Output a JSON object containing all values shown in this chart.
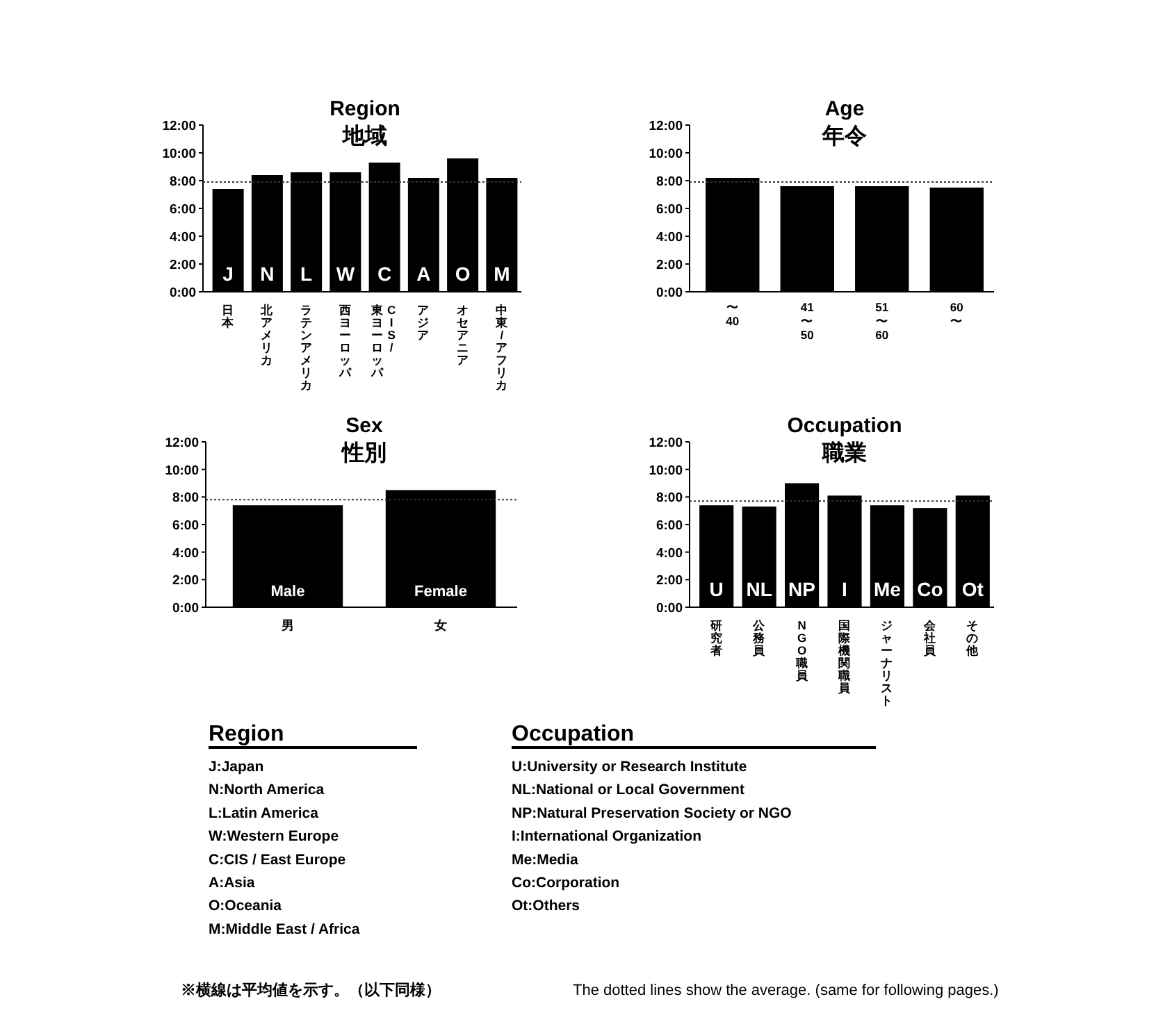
{
  "chart_data": [
    {
      "type": "bar",
      "title": "Region",
      "subtitle": "地域",
      "categories": [
        "日本",
        "北アメリカ",
        "ラテンアメリカ",
        "西ヨーロッパ",
        "CIS/東ヨーロッパ",
        "アジア",
        "オセアニア",
        "中東/アフリカ"
      ],
      "values": [
        7.4,
        8.4,
        8.6,
        8.6,
        9.3,
        8.2,
        9.6,
        8.2
      ],
      "color": "#000000",
      "ylim": [
        0,
        12
      ],
      "yticks": [
        {
          "value": 0,
          "label": "0:00"
        },
        {
          "value": 2,
          "label": "2:00"
        },
        {
          "value": 4,
          "label": "4:00"
        },
        {
          "value": 6,
          "label": "6:00"
        },
        {
          "value": 8,
          "label": "8:00"
        },
        {
          "value": 10,
          "label": "10:00"
        },
        {
          "value": 12,
          "label": "12:00"
        }
      ],
      "ref_lines": [
        {
          "axis": "y",
          "value": 7.9,
          "color": "#333333",
          "line_style": "dotted"
        }
      ],
      "annotations": [
        "J",
        "N",
        "L",
        "W",
        "C",
        "A",
        "O",
        "M"
      ]
    },
    {
      "type": "bar",
      "title": "Age",
      "subtitle": "年令",
      "categories": [
        "〜40",
        "41〜50",
        "51〜60",
        "60〜"
      ],
      "values": [
        8.2,
        7.6,
        7.6,
        7.5
      ],
      "color": "#000000",
      "ylim": [
        0,
        12
      ],
      "yticks": [
        {
          "value": 0,
          "label": "0:00"
        },
        {
          "value": 2,
          "label": "2:00"
        },
        {
          "value": 4,
          "label": "4:00"
        },
        {
          "value": 6,
          "label": "6:00"
        },
        {
          "value": 8,
          "label": "8:00"
        },
        {
          "value": 10,
          "label": "10:00"
        },
        {
          "value": 12,
          "label": "12:00"
        }
      ],
      "ref_lines": [
        {
          "axis": "y",
          "value": 7.9,
          "color": "#333333",
          "line_style": "dotted"
        }
      ]
    },
    {
      "type": "bar",
      "title": "Sex",
      "subtitle": "性別",
      "categories": [
        "男",
        "女"
      ],
      "values": [
        7.4,
        8.5
      ],
      "color": "#000000",
      "ylim": [
        0,
        12
      ],
      "yticks": [
        {
          "value": 0,
          "label": "0:00"
        },
        {
          "value": 2,
          "label": "2:00"
        },
        {
          "value": 4,
          "label": "4:00"
        },
        {
          "value": 6,
          "label": "6:00"
        },
        {
          "value": 8,
          "label": "8:00"
        },
        {
          "value": 10,
          "label": "10:00"
        },
        {
          "value": 12,
          "label": "12:00"
        }
      ],
      "ref_lines": [
        {
          "axis": "y",
          "value": 7.8,
          "color": "#333333",
          "line_style": "dotted"
        }
      ],
      "annotations": [
        "Male",
        "Female"
      ]
    },
    {
      "type": "bar",
      "title": "Occupation",
      "subtitle": "職業",
      "categories": [
        "研究者",
        "公務員",
        "NGO職員",
        "国際機関職員",
        "ジャーナリスト",
        "会社員",
        "その他"
      ],
      "values": [
        7.4,
        7.3,
        9.0,
        8.1,
        7.4,
        7.2,
        8.1
      ],
      "color": "#000000",
      "ylim": [
        0,
        12
      ],
      "yticks": [
        {
          "value": 0,
          "label": "0:00"
        },
        {
          "value": 2,
          "label": "2:00"
        },
        {
          "value": 4,
          "label": "4:00"
        },
        {
          "value": 6,
          "label": "6:00"
        },
        {
          "value": 8,
          "label": "8:00"
        },
        {
          "value": 10,
          "label": "10:00"
        },
        {
          "value": 12,
          "label": "12:00"
        }
      ],
      "ref_lines": [
        {
          "axis": "y",
          "value": 7.7,
          "color": "#333333",
          "line_style": "dotted"
        }
      ],
      "annotations": [
        "U",
        "NL",
        "NP",
        "I",
        "Me",
        "Co",
        "Ot"
      ]
    },
    {
      "type": "other",
      "title": "Region",
      "annotations": [
        "J:Japan",
        "N:North America",
        "L:Latin America",
        "W:Western Europe",
        "C:CIS / East Europe",
        "A:Asia",
        "O:Oceania",
        "M:Middle East / Africa"
      ]
    },
    {
      "type": "other",
      "title": "Occupation",
      "annotations": [
        "U:University or Research Institute",
        "NL:National or Local Government",
        "NP:Natural Preservation Society or NGO",
        "I:International Organization",
        "Me:Media",
        "Co:Corporation",
        "Ot:Others"
      ]
    },
    {
      "type": "other",
      "annotations": [
        "※横線は平均値を示す。（以下同様）",
        "The dotted lines show the average. (same for following pages.)"
      ]
    }
  ]
}
